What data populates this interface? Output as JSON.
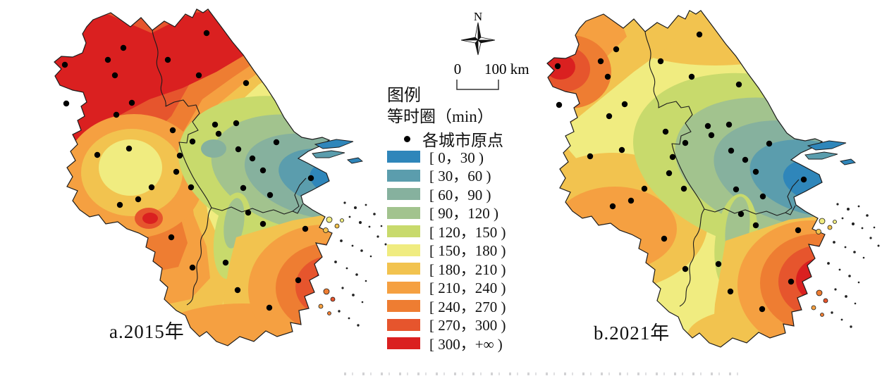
{
  "figure": {
    "panels": [
      {
        "id": "a",
        "label": "a.2015年"
      },
      {
        "id": "b",
        "label": "b.2021年"
      }
    ],
    "compass": {
      "label": "N"
    },
    "scale_bar": {
      "start_label": "0",
      "end_label": "100 km"
    },
    "legend": {
      "title": "图例",
      "subtitle": "等时圈（min）",
      "point_label": "各城市原点",
      "classes": [
        {
          "label": "[ 0，30 )",
          "color": "#2f86ba"
        },
        {
          "label": "[ 30，60 )",
          "color": "#5b9dad"
        },
        {
          "label": "[ 60，90 )",
          "color": "#86b19e"
        },
        {
          "label": "[ 90，120 )",
          "color": "#a2c38e"
        },
        {
          "label": "[ 120，150 )",
          "color": "#c8da6c"
        },
        {
          "label": "[ 150，180 )",
          "color": "#f0ec80"
        },
        {
          "label": "[ 180，210 )",
          "color": "#f2c34f"
        },
        {
          "label": "[ 210，240 )",
          "color": "#f5a041"
        },
        {
          "label": "[ 240，270 )",
          "color": "#ee7d32"
        },
        {
          "label": "[ 270，300 )",
          "color": "#e6552d"
        },
        {
          "label": "[ 300，+∞ )",
          "color": "#da2020"
        }
      ]
    },
    "city_points": [
      [
        278,
        42
      ],
      [
        160,
        63
      ],
      [
        138,
        80
      ],
      [
        77,
        87
      ],
      [
        223,
        80
      ],
      [
        267,
        102
      ],
      [
        148,
        102
      ],
      [
        79,
        142
      ],
      [
        172,
        141
      ],
      [
        334,
        113
      ],
      [
        150,
        158
      ],
      [
        290,
        172
      ],
      [
        295,
        185
      ],
      [
        320,
        170
      ],
      [
        377,
        197
      ],
      [
        230,
        180
      ],
      [
        258,
        196
      ],
      [
        323,
        207
      ],
      [
        168,
        206
      ],
      [
        240,
        216
      ],
      [
        343,
        220
      ],
      [
        123,
        215
      ],
      [
        358,
        237
      ],
      [
        426,
        248
      ],
      [
        235,
        239
      ],
      [
        256,
        261
      ],
      [
        200,
        261
      ],
      [
        181,
        278
      ],
      [
        155,
        286
      ],
      [
        330,
        262
      ],
      [
        368,
        272
      ],
      [
        337,
        297
      ],
      [
        358,
        313
      ],
      [
        418,
        320
      ],
      [
        228,
        332
      ],
      [
        305,
        368
      ],
      [
        258,
        375
      ],
      [
        408,
        393
      ],
      [
        322,
        407
      ],
      [
        367,
        432
      ]
    ],
    "map_style": {
      "outline_color": "#1b1b1b",
      "dot_color": "#000000"
    }
  }
}
